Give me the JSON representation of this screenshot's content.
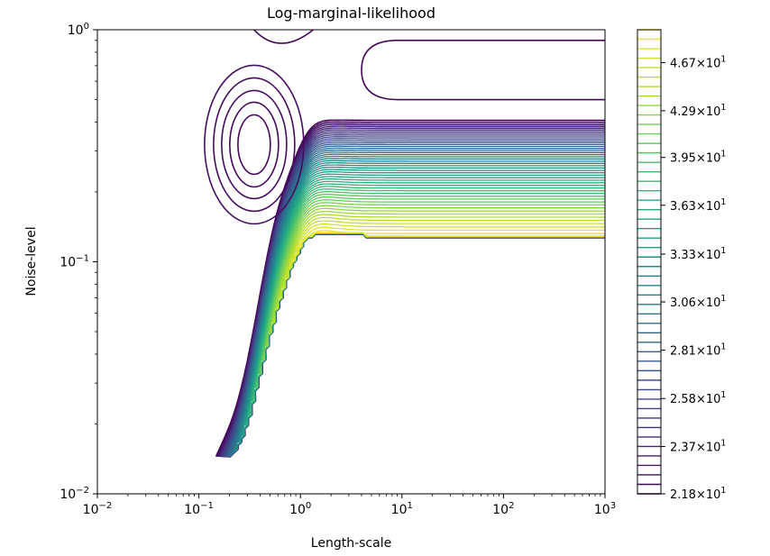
{
  "chart_data": {
    "type": "contour",
    "title": "Log-marginal-likelihood",
    "xlabel": "Length-scale",
    "ylabel": "Noise-level",
    "x_scale": "log",
    "y_scale": "log",
    "xlim": [
      0.01,
      1000
    ],
    "ylim": [
      0.01,
      1
    ],
    "x_ticks": [
      {
        "value": 0.01,
        "base": "10",
        "exp": "−2"
      },
      {
        "value": 0.1,
        "base": "10",
        "exp": "−1"
      },
      {
        "value": 1,
        "base": "10",
        "exp": "0"
      },
      {
        "value": 10,
        "base": "10",
        "exp": "1"
      },
      {
        "value": 100,
        "base": "10",
        "exp": "2"
      },
      {
        "value": 1000,
        "base": "10",
        "exp": "3"
      }
    ],
    "y_ticks": [
      {
        "value": 0.01,
        "base": "10",
        "exp": "−2"
      },
      {
        "value": 0.1,
        "base": "10",
        "exp": "−1"
      },
      {
        "value": 1,
        "base": "10",
        "exp": "0"
      }
    ],
    "colorbar": {
      "colormap": "viridis",
      "min": 21.8,
      "max": 49.5,
      "n_levels": 50,
      "scale": "log",
      "ticks": [
        {
          "value": 21.8,
          "mant": "2.18",
          "exp": "1"
        },
        {
          "value": 23.7,
          "mant": "2.37",
          "exp": "1"
        },
        {
          "value": 25.8,
          "mant": "2.58",
          "exp": "1"
        },
        {
          "value": 28.1,
          "mant": "2.81",
          "exp": "1"
        },
        {
          "value": 30.6,
          "mant": "3.06",
          "exp": "1"
        },
        {
          "value": 33.3,
          "mant": "3.33",
          "exp": "1"
        },
        {
          "value": 36.3,
          "mant": "3.63",
          "exp": "1"
        },
        {
          "value": 39.5,
          "mant": "3.95",
          "exp": "1"
        },
        {
          "value": 42.9,
          "mant": "4.29",
          "exp": "1"
        },
        {
          "value": 46.7,
          "mant": "4.67",
          "exp": "1"
        }
      ]
    },
    "features": [
      {
        "kind": "local-maximum",
        "x": 0.35,
        "y": 0.32
      },
      {
        "kind": "plateau-edge",
        "x_from": 1.6,
        "y": 0.13
      },
      {
        "kind": "upper-ridge",
        "x_from": 4,
        "y": 0.7
      }
    ]
  }
}
